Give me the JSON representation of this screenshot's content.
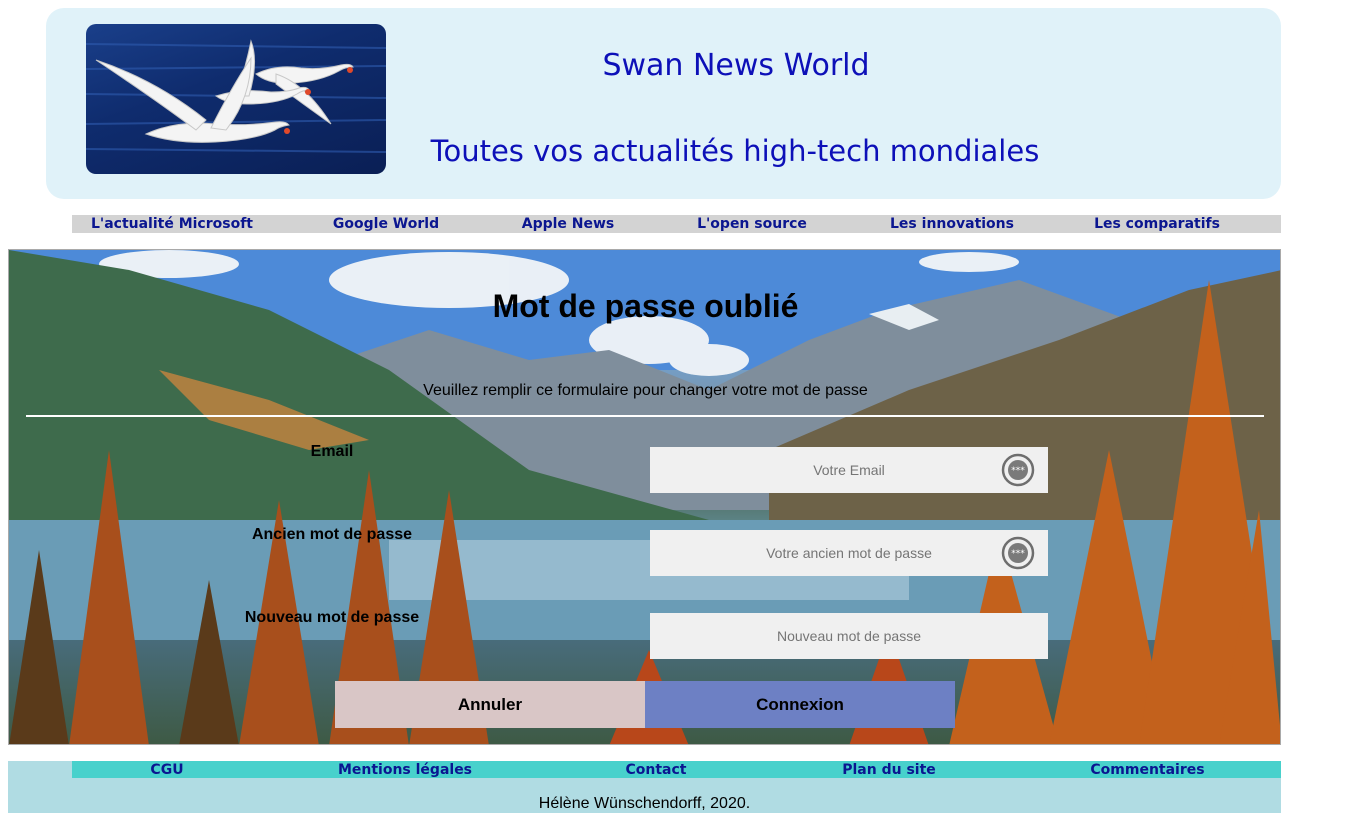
{
  "header": {
    "title": "Swan News World",
    "tagline": "Toutes vos actualités high-tech mondiales"
  },
  "nav": {
    "items": [
      "L'actualité Microsoft",
      "Google World",
      "Apple News",
      "L'open source",
      "Les innovations",
      "Les comparatifs"
    ]
  },
  "form": {
    "title": "Mot de passe oublié",
    "subtitle": "Veuillez remplir ce formulaire pour changer votre mot de passe",
    "email_label": "Email",
    "email_placeholder": "Votre Email",
    "old_password_label": "Ancien mot de passe",
    "old_password_placeholder": "Votre ancien mot de passe",
    "new_password_label": "Nouveau mot de passe",
    "new_password_placeholder": "Nouveau mot de passe",
    "cancel_label": "Annuler",
    "login_label": "Connexion"
  },
  "footer": {
    "items": [
      "CGU",
      "Mentions légales",
      "Contact",
      "Plan du site",
      "Commentaires"
    ],
    "copyright": "Hélène Wünschendorff, 2020."
  },
  "colors": {
    "title_blue": "#0d10b8",
    "nav_text": "#0b1690",
    "nav_bg": "#d3d3d3",
    "footer_nav_bg": "#48d1cc",
    "footer_bg": "#b0dce3",
    "cancel_bg": "#d9c6c6",
    "login_bg": "#6d80c4"
  }
}
